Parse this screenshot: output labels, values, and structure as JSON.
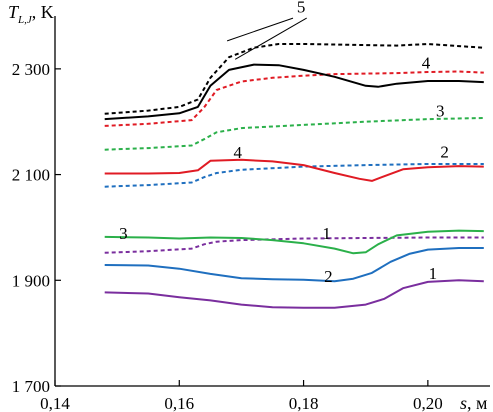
{
  "chart_data": {
    "type": "line",
    "ylabel_symbol": "T",
    "ylabel_subscript": "L,J",
    "ylabel_unit": ", K",
    "xlabel_symbol": "s",
    "xlabel_unit": ", м",
    "xlim": [
      0.14,
      0.21
    ],
    "ylim": [
      1700,
      2400
    ],
    "x_ticks": [
      {
        "value": 0.14,
        "label": "0,14"
      },
      {
        "value": 0.16,
        "label": "0,16"
      },
      {
        "value": 0.18,
        "label": "0,18"
      },
      {
        "value": 0.2,
        "label": "0,20"
      }
    ],
    "y_ticks": [
      {
        "value": 1700,
        "label": "1 700"
      },
      {
        "value": 1900,
        "label": "1 900"
      },
      {
        "value": 2100,
        "label": "2 100"
      },
      {
        "value": 2300,
        "label": "2 300"
      }
    ],
    "grid": false,
    "series": [
      {
        "name": "1",
        "style": "solid",
        "color": "#7a2e9e",
        "x": [
          0.148,
          0.155,
          0.16,
          0.165,
          0.17,
          0.175,
          0.18,
          0.185,
          0.19,
          0.193,
          0.196,
          0.2,
          0.205,
          0.209
        ],
        "y": [
          1877,
          1875,
          1868,
          1862,
          1854,
          1849,
          1848,
          1848,
          1854,
          1865,
          1885,
          1897,
          1900,
          1898
        ]
      },
      {
        "name": "1",
        "style": "dashed",
        "color": "#7a2e9e",
        "x": [
          0.148,
          0.155,
          0.162,
          0.164,
          0.166,
          0.17,
          0.18,
          0.19,
          0.2,
          0.209
        ],
        "y": [
          1952,
          1955,
          1960,
          1968,
          1973,
          1976,
          1979,
          1980,
          1981,
          1981
        ]
      },
      {
        "name": "2",
        "style": "solid",
        "color": "#1f6fbf",
        "x": [
          0.148,
          0.155,
          0.16,
          0.165,
          0.17,
          0.175,
          0.18,
          0.185,
          0.188,
          0.191,
          0.194,
          0.197,
          0.2,
          0.205,
          0.209
        ],
        "y": [
          1929,
          1928,
          1922,
          1912,
          1904,
          1902,
          1901,
          1898,
          1903,
          1914,
          1935,
          1950,
          1958,
          1961,
          1961
        ]
      },
      {
        "name": "2",
        "style": "dashed",
        "color": "#1f6fbf",
        "x": [
          0.148,
          0.155,
          0.162,
          0.164,
          0.166,
          0.17,
          0.18,
          0.19,
          0.2,
          0.209
        ],
        "y": [
          2077,
          2080,
          2085,
          2095,
          2103,
          2109,
          2115,
          2118,
          2120,
          2120
        ]
      },
      {
        "name": "3",
        "style": "solid",
        "color": "#2bb04a",
        "x": [
          0.148,
          0.155,
          0.16,
          0.165,
          0.17,
          0.175,
          0.18,
          0.185,
          0.188,
          0.19,
          0.192,
          0.195,
          0.2,
          0.205,
          0.209
        ],
        "y": [
          1982,
          1981,
          1979,
          1981,
          1980,
          1976,
          1970,
          1960,
          1951,
          1953,
          1968,
          1985,
          1992,
          1994,
          1993
        ]
      },
      {
        "name": "3",
        "style": "dashed",
        "color": "#2bb04a",
        "x": [
          0.148,
          0.155,
          0.162,
          0.164,
          0.166,
          0.17,
          0.18,
          0.19,
          0.2,
          0.209
        ],
        "y": [
          2147,
          2150,
          2155,
          2167,
          2180,
          2188,
          2194,
          2200,
          2205,
          2207
        ]
      },
      {
        "name": "4",
        "style": "solid",
        "color": "#e01b24",
        "x": [
          0.148,
          0.155,
          0.16,
          0.163,
          0.165,
          0.17,
          0.175,
          0.18,
          0.185,
          0.189,
          0.191,
          0.193,
          0.196,
          0.2,
          0.205,
          0.209
        ],
        "y": [
          2102,
          2102,
          2103,
          2108,
          2126,
          2128,
          2125,
          2118,
          2103,
          2092,
          2088,
          2097,
          2110,
          2114,
          2116,
          2115
        ]
      },
      {
        "name": "4",
        "style": "dashed",
        "color": "#e01b24",
        "x": [
          0.148,
          0.155,
          0.162,
          0.164,
          0.166,
          0.17,
          0.175,
          0.18,
          0.185,
          0.19,
          0.195,
          0.2,
          0.205,
          0.209
        ],
        "y": [
          2192,
          2196,
          2203,
          2227,
          2260,
          2276,
          2283,
          2287,
          2290,
          2291,
          2292,
          2294,
          2295,
          2293
        ]
      },
      {
        "name": "5",
        "style": "solid",
        "color": "#000000",
        "x": [
          0.148,
          0.155,
          0.16,
          0.163,
          0.165,
          0.168,
          0.172,
          0.176,
          0.18,
          0.185,
          0.19,
          0.192,
          0.195,
          0.2,
          0.205,
          0.209
        ],
        "y": [
          2205,
          2210,
          2216,
          2228,
          2268,
          2298,
          2308,
          2307,
          2298,
          2285,
          2268,
          2266,
          2272,
          2277,
          2277,
          2275
        ]
      },
      {
        "name": "5",
        "style": "dashed",
        "color": "#000000",
        "x": [
          0.148,
          0.155,
          0.16,
          0.163,
          0.165,
          0.168,
          0.172,
          0.176,
          0.18,
          0.185,
          0.19,
          0.195,
          0.2,
          0.205,
          0.209
        ],
        "y": [
          2215,
          2221,
          2228,
          2242,
          2283,
          2322,
          2340,
          2347,
          2347,
          2346,
          2345,
          2344,
          2347,
          2343,
          2340
        ]
      }
    ],
    "annotations": [
      {
        "text": "1",
        "x": 0.1837,
        "y": 1989
      },
      {
        "text": "1",
        "x": 0.2008,
        "y": 1914
      },
      {
        "text": "2",
        "x": 0.2027,
        "y": 2144
      },
      {
        "text": "2",
        "x": 0.184,
        "y": 1908
      },
      {
        "text": "3",
        "x": 0.202,
        "y": 2221
      },
      {
        "text": "3",
        "x": 0.151,
        "y": 1989
      },
      {
        "text": "4",
        "x": 0.1997,
        "y": 2312
      },
      {
        "text": "4",
        "x": 0.1694,
        "y": 2143
      },
      {
        "text": "5",
        "x": 0.1796,
        "y": 2418
      }
    ],
    "leaders": [
      {
        "x1": 0.1783,
        "y1": 2396,
        "x2": 0.1677,
        "y2": 2353
      },
      {
        "x1": 0.1805,
        "y1": 2396,
        "x2": 0.169,
        "y2": 2318
      }
    ]
  }
}
